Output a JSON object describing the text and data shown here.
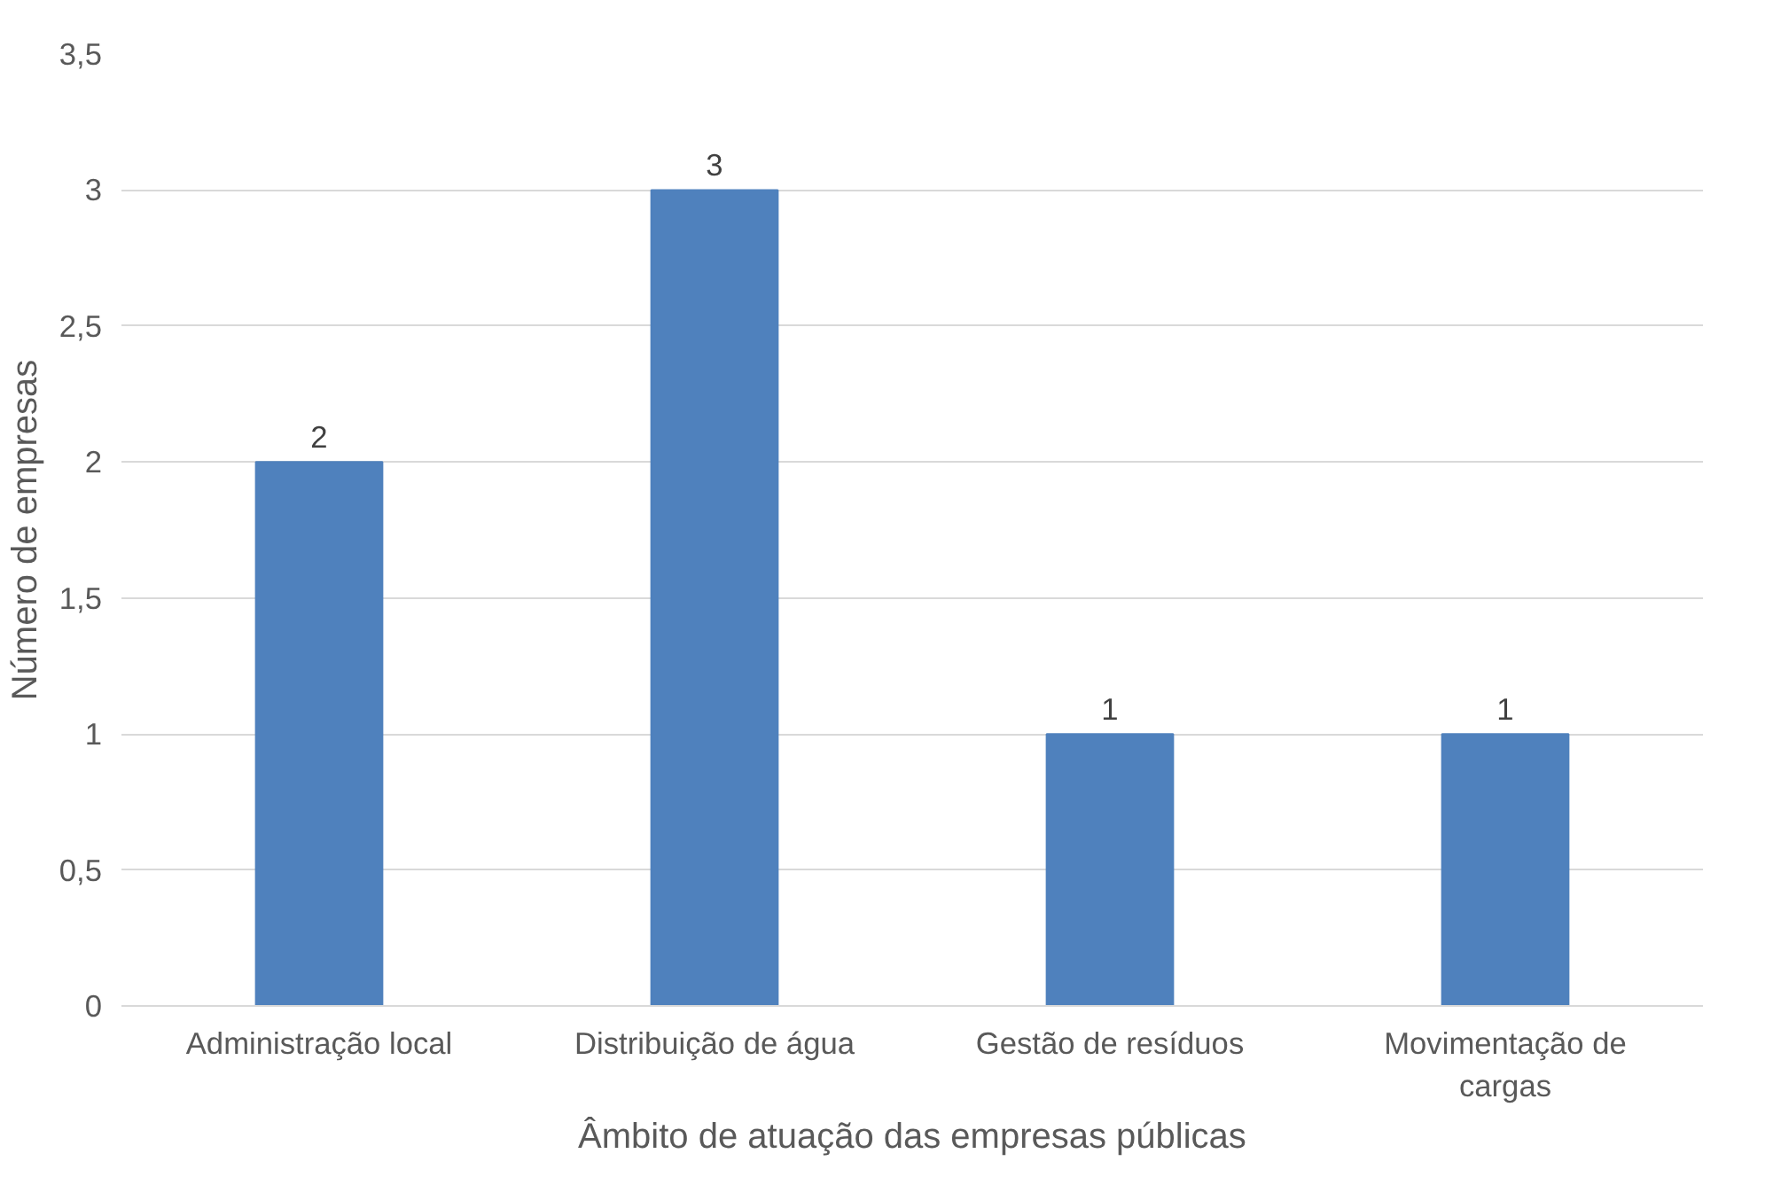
{
  "chart_data": {
    "type": "bar",
    "xlabel": "Âmbito de atuação das empresas públicas",
    "ylabel": "Número de empresas",
    "categories": [
      "Administração local",
      "Distribuição de água",
      "Gestão de resíduos",
      "Movimentação de cargas"
    ],
    "values": [
      2,
      3,
      1,
      1
    ],
    "color": "#4f81bd",
    "data_labels": true,
    "grid": "y",
    "ylim": [
      0,
      3.5
    ],
    "yticks": [
      0,
      {
        "value": 0.5,
        "label": "0,5"
      },
      1,
      {
        "value": 1.5,
        "label": "1,5"
      },
      2,
      {
        "value": 2.5,
        "label": "2,5"
      },
      3,
      {
        "value": 3.5,
        "label": "3,5"
      }
    ]
  }
}
